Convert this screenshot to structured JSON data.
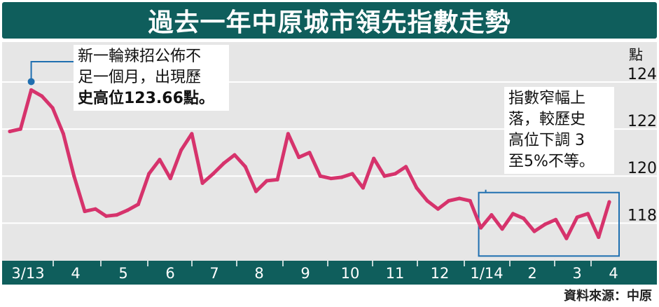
{
  "title": "過去一年中原城市領先指數走勢",
  "source": "資料來源：中原",
  "annotations": {
    "peak_note": [
      "新一輪辣招公佈不",
      "足一個月，出現歷",
      "史高位123.66點。"
    ],
    "drop_note": [
      "指數窄幅上",
      "落，較歷史",
      "高位下調 3",
      "至5%不等。"
    ]
  },
  "colors": {
    "title_bar": "#0f5e5c",
    "line": "#d6336c",
    "marker": "#1f6fb0",
    "box": "#1f6fb0",
    "plot_bg": "#e6e6e6"
  },
  "chart_data": {
    "type": "line",
    "title": "過去一年中原城市領先指數走勢",
    "ylabel": "點",
    "ylim": [
      116.4,
      125.7
    ],
    "yticks": [
      118,
      120,
      122,
      124
    ],
    "grid": true,
    "months": [
      "3/13",
      "4",
      "5",
      "6",
      "7",
      "8",
      "9",
      "10",
      "11",
      "12",
      "1/14",
      "2",
      "3",
      "4"
    ],
    "series": [
      {
        "values": [
          121.9,
          122.0,
          123.66,
          123.4,
          122.9,
          121.8,
          120.0,
          118.5,
          118.6,
          118.3,
          118.35,
          118.55,
          118.8,
          120.1,
          120.7,
          119.9,
          121.1,
          121.8,
          119.7,
          120.1,
          120.55,
          120.9,
          120.4,
          119.35,
          119.8,
          119.85,
          121.8,
          120.8,
          121.0,
          120.0,
          119.9,
          119.95,
          120.1,
          119.5,
          120.75,
          120.0,
          120.1,
          120.4,
          119.5,
          118.95,
          118.6,
          118.95,
          119.05,
          118.95,
          117.8,
          118.35,
          117.75,
          118.4,
          118.2,
          117.65,
          117.95,
          118.15,
          117.35,
          118.25,
          118.4,
          117.4,
          118.9
        ]
      }
    ]
  }
}
